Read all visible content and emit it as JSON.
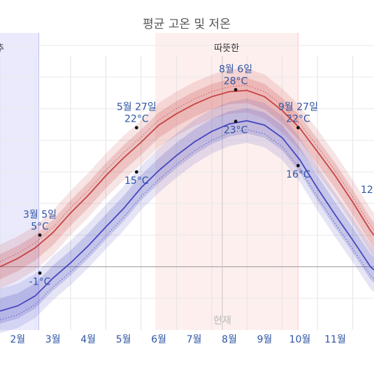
{
  "chart_data": {
    "type": "line",
    "title": "평균 고온 및 저온",
    "months": [
      "2월",
      "3월",
      "4월",
      "5월",
      "6월",
      "7월",
      "8월",
      "9월",
      "10월",
      "11월"
    ],
    "seasons": [
      {
        "label": "",
        "start": -0.5,
        "end": 2.1,
        "color": "#5b5be6"
      },
      {
        "label": "따뜻한",
        "start": 5.4,
        "end": 9.45,
        "color": "#f2807c"
      }
    ],
    "now_label": "현재",
    "now_month": 7.3,
    "x_range": [
      1.0,
      11.6
    ],
    "y_range_c": [
      -10,
      37
    ],
    "series": [
      {
        "key": "high",
        "color": "#c64343",
        "x": [
          1.0,
          1.5,
          2.0,
          2.5,
          3.0,
          3.5,
          4.0,
          4.5,
          5.0,
          5.5,
          6.0,
          6.5,
          7.0,
          7.5,
          8.0,
          8.5,
          9.0,
          9.5,
          10.0,
          10.5,
          11.0,
          11.5,
          11.6
        ],
        "values": [
          0,
          1.3,
          3,
          5.4,
          8.5,
          11.3,
          14.4,
          17.2,
          19.7,
          22.4,
          24.2,
          25.7,
          26.9,
          27.7,
          27.9,
          26.9,
          24.7,
          21.9,
          18.2,
          14.4,
          10.2,
          5.7,
          5
        ],
        "band_inner": 2,
        "band_outer": 3.5
      },
      {
        "key": "low",
        "color": "#4747bd",
        "x": [
          1.0,
          1.5,
          2.0,
          2.5,
          3.0,
          3.5,
          4.0,
          4.5,
          5.0,
          5.5,
          6.0,
          6.5,
          7.0,
          7.5,
          8.0,
          8.5,
          9.0,
          9.5,
          10.0,
          10.5,
          11.0,
          11.5,
          11.6
        ],
        "values": [
          -7,
          -6.2,
          -4.6,
          -1.8,
          0.6,
          3.3,
          6.3,
          9.2,
          12.5,
          15.2,
          17.6,
          19.7,
          21.4,
          22.6,
          23.1,
          22.4,
          20.4,
          16.9,
          12.4,
          8.2,
          4.2,
          0,
          -0.5
        ],
        "band_inner": 2,
        "band_outer": 3.5
      }
    ],
    "annotations": [
      {
        "date": "3월 5일",
        "high": "5°C",
        "low": "-1°C",
        "x": 2.13,
        "high_value": 5,
        "low_value": -1
      },
      {
        "date": "5월 27일",
        "high": "22°C",
        "low": "15°C",
        "x": 4.87,
        "high_value": 22,
        "low_value": 15
      },
      {
        "date": "8월 6일",
        "high": "28°C",
        "low": "23°C",
        "x": 7.68,
        "high_value": 28,
        "low_value": 23
      },
      {
        "date": "9월 27일",
        "high": "22°C",
        "low": "16°C",
        "x": 9.45,
        "high_value": 22,
        "low_value": 16
      }
    ],
    "edge_labels": {
      "right_date_fragment": "12",
      "left_season_fragment": "추"
    }
  }
}
